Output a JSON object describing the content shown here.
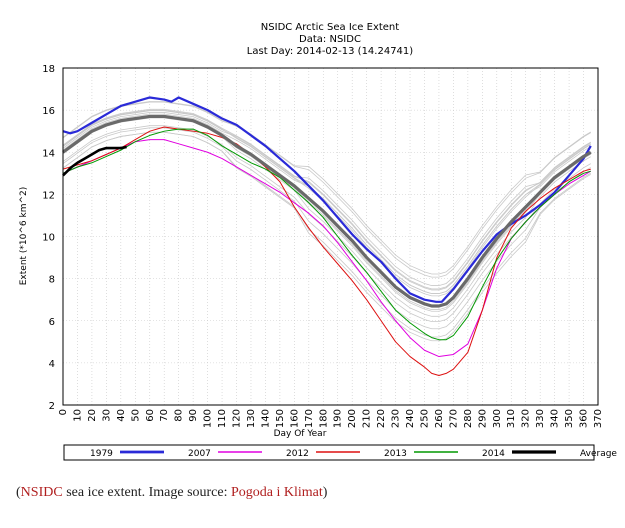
{
  "chart_data": {
    "type": "line",
    "title": "NSIDC Arctic Sea Ice Extent",
    "subtitle_1": "Data: NSIDC",
    "subtitle_2": "Last Day: 2014-02-13 (14.24741)",
    "xlabel": "Day Of Year",
    "ylabel": "Extent (*10^6 km^2)",
    "xlim": [
      0,
      370
    ],
    "ylim": [
      2,
      18
    ],
    "x_ticks": [
      0,
      10,
      20,
      30,
      40,
      50,
      60,
      70,
      80,
      90,
      100,
      110,
      120,
      130,
      140,
      150,
      160,
      170,
      180,
      190,
      200,
      210,
      220,
      230,
      240,
      250,
      260,
      270,
      280,
      290,
      300,
      310,
      320,
      330,
      340,
      350,
      360,
      370
    ],
    "y_ticks": [
      2,
      4,
      6,
      8,
      10,
      12,
      14,
      16,
      18
    ],
    "grid": true,
    "legend_position": "bottom",
    "background_note": "grey lines: individual years",
    "series": [
      {
        "name": "1979",
        "color": "#2a2ad8",
        "width": 2.2,
        "x": [
          0,
          5,
          10,
          20,
          30,
          40,
          50,
          55,
          60,
          70,
          75,
          80,
          90,
          100,
          110,
          120,
          130,
          140,
          150,
          160,
          170,
          180,
          190,
          200,
          210,
          220,
          230,
          240,
          250,
          258,
          262,
          270,
          280,
          290,
          300,
          310,
          320,
          330,
          340,
          350,
          360,
          365
        ],
        "y": [
          15.0,
          14.9,
          15.0,
          15.4,
          15.8,
          16.2,
          16.4,
          16.5,
          16.6,
          16.5,
          16.4,
          16.6,
          16.3,
          16.0,
          15.6,
          15.3,
          14.8,
          14.3,
          13.7,
          13.1,
          12.4,
          11.7,
          10.9,
          10.1,
          9.4,
          8.8,
          8.0,
          7.3,
          7.0,
          6.9,
          6.9,
          7.5,
          8.4,
          9.3,
          10.1,
          10.6,
          11.0,
          11.5,
          12.1,
          12.9,
          13.7,
          14.3
        ]
      },
      {
        "name": "2007",
        "color": "#e000e0",
        "width": 1,
        "x": [
          0,
          10,
          20,
          30,
          40,
          50,
          60,
          70,
          80,
          90,
          100,
          110,
          120,
          130,
          140,
          150,
          160,
          170,
          180,
          190,
          200,
          210,
          220,
          230,
          240,
          250,
          260,
          270,
          280,
          290,
          300,
          310,
          320,
          330,
          340,
          350,
          360,
          365
        ],
        "y": [
          13.0,
          13.3,
          13.6,
          13.9,
          14.2,
          14.5,
          14.6,
          14.6,
          14.4,
          14.2,
          14.0,
          13.7,
          13.3,
          12.9,
          12.5,
          12.1,
          11.6,
          11.1,
          10.5,
          9.7,
          8.8,
          7.9,
          6.9,
          6.0,
          5.2,
          4.6,
          4.3,
          4.4,
          4.9,
          6.5,
          8.5,
          9.9,
          10.7,
          11.4,
          12.0,
          12.5,
          12.9,
          13.1
        ]
      },
      {
        "name": "2012",
        "color": "#dd1111",
        "width": 1,
        "x": [
          0,
          10,
          20,
          30,
          40,
          50,
          60,
          70,
          80,
          90,
          100,
          110,
          120,
          130,
          140,
          150,
          160,
          170,
          180,
          190,
          200,
          210,
          220,
          230,
          240,
          250,
          255,
          260,
          265,
          270,
          280,
          290,
          300,
          310,
          320,
          330,
          340,
          350,
          360,
          365
        ],
        "y": [
          13.2,
          13.4,
          13.6,
          13.9,
          14.2,
          14.6,
          15.0,
          15.2,
          15.1,
          15.0,
          14.9,
          14.7,
          14.4,
          13.9,
          13.3,
          12.6,
          11.4,
          10.4,
          9.5,
          8.7,
          7.9,
          7.0,
          6.0,
          5.0,
          4.3,
          3.8,
          3.5,
          3.4,
          3.5,
          3.7,
          4.5,
          6.5,
          9.0,
          10.4,
          11.2,
          11.8,
          12.3,
          12.7,
          13.1,
          13.2
        ]
      },
      {
        "name": "2013",
        "color": "#009900",
        "width": 1,
        "x": [
          0,
          10,
          20,
          30,
          40,
          50,
          60,
          70,
          80,
          90,
          100,
          110,
          120,
          130,
          140,
          150,
          160,
          170,
          180,
          190,
          200,
          210,
          220,
          230,
          240,
          250,
          255,
          260,
          265,
          270,
          280,
          290,
          300,
          310,
          320,
          330,
          340,
          350,
          360,
          365
        ],
        "y": [
          13.0,
          13.3,
          13.5,
          13.8,
          14.1,
          14.5,
          14.8,
          15.0,
          15.1,
          15.1,
          14.8,
          14.3,
          13.9,
          13.5,
          13.2,
          12.8,
          12.2,
          11.6,
          10.9,
          10.0,
          9.1,
          8.3,
          7.4,
          6.5,
          5.9,
          5.4,
          5.2,
          5.1,
          5.1,
          5.3,
          6.2,
          7.6,
          8.9,
          9.9,
          10.7,
          11.4,
          12.0,
          12.6,
          13.0,
          13.1
        ]
      },
      {
        "name": "2014",
        "color": "#000000",
        "width": 2.6,
        "x": [
          0,
          3,
          6,
          10,
          15,
          20,
          25,
          30,
          35,
          40,
          44
        ],
        "y": [
          12.9,
          13.1,
          13.3,
          13.5,
          13.7,
          13.9,
          14.1,
          14.2,
          14.2,
          14.2,
          14.25
        ]
      },
      {
        "name": "Average",
        "color": "#6a6a6a",
        "width": 3.2,
        "x": [
          0,
          10,
          20,
          30,
          40,
          50,
          60,
          70,
          80,
          90,
          100,
          110,
          120,
          130,
          140,
          150,
          160,
          170,
          180,
          190,
          200,
          210,
          220,
          230,
          240,
          250,
          255,
          260,
          265,
          270,
          280,
          290,
          300,
          310,
          320,
          330,
          340,
          350,
          360,
          365
        ],
        "y": [
          14.0,
          14.5,
          15.0,
          15.3,
          15.5,
          15.6,
          15.7,
          15.7,
          15.6,
          15.5,
          15.2,
          14.8,
          14.3,
          13.9,
          13.4,
          12.9,
          12.4,
          11.8,
          11.2,
          10.5,
          9.8,
          9.0,
          8.3,
          7.6,
          7.1,
          6.8,
          6.7,
          6.7,
          6.8,
          7.1,
          8.0,
          9.0,
          9.9,
          10.7,
          11.4,
          12.1,
          12.8,
          13.3,
          13.8,
          14.0
        ]
      }
    ],
    "legend_entries": [
      {
        "label": "1979",
        "color": "#2a2ad8",
        "width": 2.2
      },
      {
        "label": "2007",
        "color": "#e000e0",
        "width": 1
      },
      {
        "label": "2012",
        "color": "#dd1111",
        "width": 1
      },
      {
        "label": "2013",
        "color": "#009900",
        "width": 1
      },
      {
        "label": "2014",
        "color": "#000000",
        "width": 2.6
      },
      {
        "label": "Average",
        "color": "#6a6a6a",
        "width": 3.2
      }
    ]
  },
  "caption": {
    "open_paren": "(",
    "source_link": "NSIDC",
    "middle_text": " sea ice extent. Image source: ",
    "image_link": "Pogoda i Klimat",
    "close_paren": ")"
  }
}
